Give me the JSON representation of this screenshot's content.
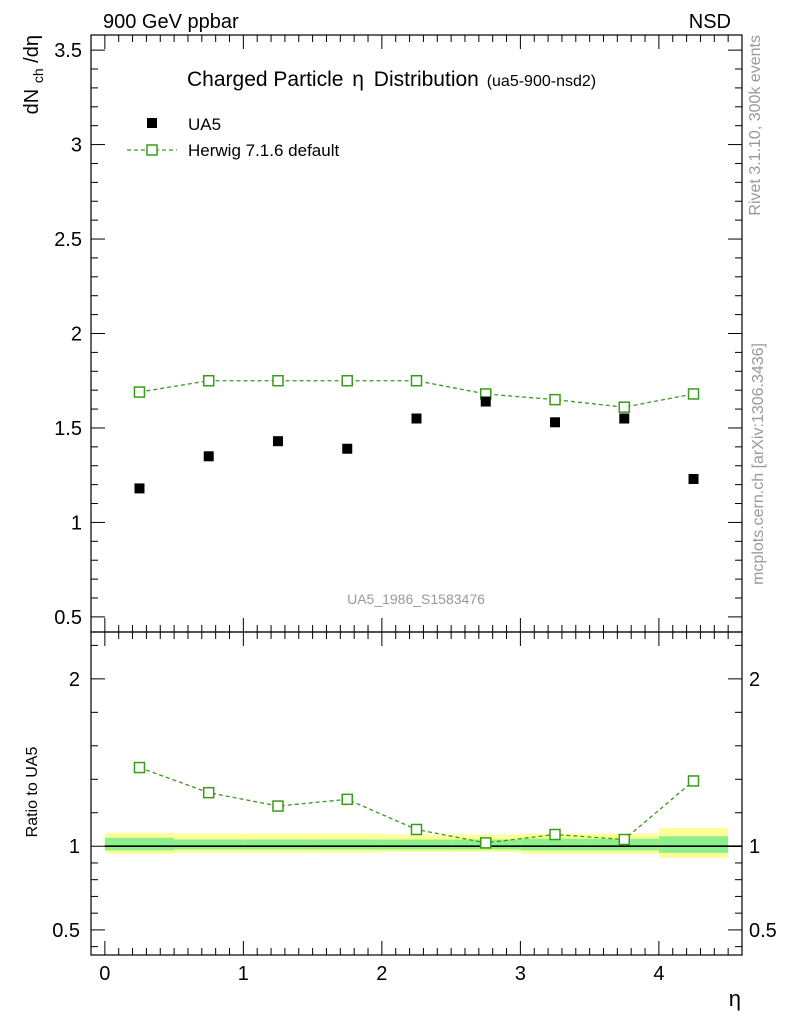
{
  "header": {
    "left": "900 GeV ppbar",
    "right": "NSD"
  },
  "side_labels": {
    "top": "Rivet 3.1.10,  300k events",
    "bottom": "mcplots.cern.ch [arXiv:1306.3436]"
  },
  "watermark": "UA5_1986_S1583476",
  "colors": {
    "data": "#000000",
    "mc": "#3a9a1a",
    "band_inner": "#8cf08c",
    "band_outer": "#ffff99",
    "gray_text": "#999999"
  },
  "chart_data": [
    {
      "type": "scatter",
      "title_main": "Charged Particle",
      "title_eta": "η",
      "title_rest": "Distribution",
      "title_tag": "(ua5-900-nsd2)",
      "ylabel": "dN_ch/dη",
      "ylabel_main": "dN",
      "ylabel_sub": "ch",
      "ylabel_tail": "/dη",
      "xlim": [
        -0.1,
        4.6
      ],
      "ylim": [
        0.42,
        3.58
      ],
      "y_tick_labels": [
        "0.5",
        "1",
        "1.5",
        "2",
        "2.5",
        "3",
        "3.5"
      ],
      "legend_position": "top-left",
      "series": [
        {
          "name": "UA5",
          "marker": "filled-square",
          "x": [
            0.25,
            0.75,
            1.25,
            1.75,
            2.25,
            2.75,
            3.25,
            3.75,
            4.25
          ],
          "values": [
            1.18,
            1.35,
            1.43,
            1.39,
            1.55,
            1.64,
            1.53,
            1.55,
            1.23
          ]
        },
        {
          "name": "Herwig 7.1.6 default",
          "marker": "open-square",
          "line": "dashed",
          "x": [
            0.25,
            0.75,
            1.25,
            1.75,
            2.25,
            2.75,
            3.25,
            3.75,
            4.25
          ],
          "values": [
            1.69,
            1.75,
            1.75,
            1.75,
            1.75,
            1.68,
            1.65,
            1.61,
            1.68
          ]
        }
      ]
    },
    {
      "type": "scatter",
      "ylabel": "Ratio to UA5",
      "xlabel": "η",
      "xlim": [
        -0.1,
        4.6
      ],
      "ylim": [
        0.35,
        2.28
      ],
      "x_tick_labels": [
        "0",
        "1",
        "2",
        "3",
        "4"
      ],
      "y_tick_labels": [
        "0.5",
        "1",
        "2"
      ],
      "y_tick_values": [
        0.5,
        1,
        2
      ],
      "reference_line": 1,
      "bands": {
        "edges": [
          0,
          0.5,
          1,
          1.5,
          2,
          2.5,
          3,
          3.5,
          4,
          4.5
        ],
        "inner": [
          [
            0.975,
            1.05
          ],
          [
            0.98,
            1.04
          ],
          [
            0.98,
            1.04
          ],
          [
            0.98,
            1.04
          ],
          [
            0.98,
            1.04
          ],
          [
            0.98,
            1.04
          ],
          [
            0.975,
            1.045
          ],
          [
            0.975,
            1.045
          ],
          [
            0.96,
            1.06
          ]
        ],
        "outer": [
          [
            0.955,
            1.08
          ],
          [
            0.96,
            1.075
          ],
          [
            0.96,
            1.075
          ],
          [
            0.96,
            1.075
          ],
          [
            0.965,
            1.07
          ],
          [
            0.965,
            1.07
          ],
          [
            0.955,
            1.075
          ],
          [
            0.955,
            1.075
          ],
          [
            0.93,
            1.11
          ]
        ]
      },
      "series": [
        {
          "name": "Herwig 7.1.6 default",
          "marker": "open-square",
          "line": "dashed",
          "x": [
            0.25,
            0.75,
            1.25,
            1.75,
            2.25,
            2.75,
            3.25,
            3.75,
            4.25
          ],
          "values": [
            1.47,
            1.32,
            1.24,
            1.28,
            1.1,
            1.02,
            1.07,
            1.04,
            1.39
          ]
        }
      ]
    }
  ]
}
